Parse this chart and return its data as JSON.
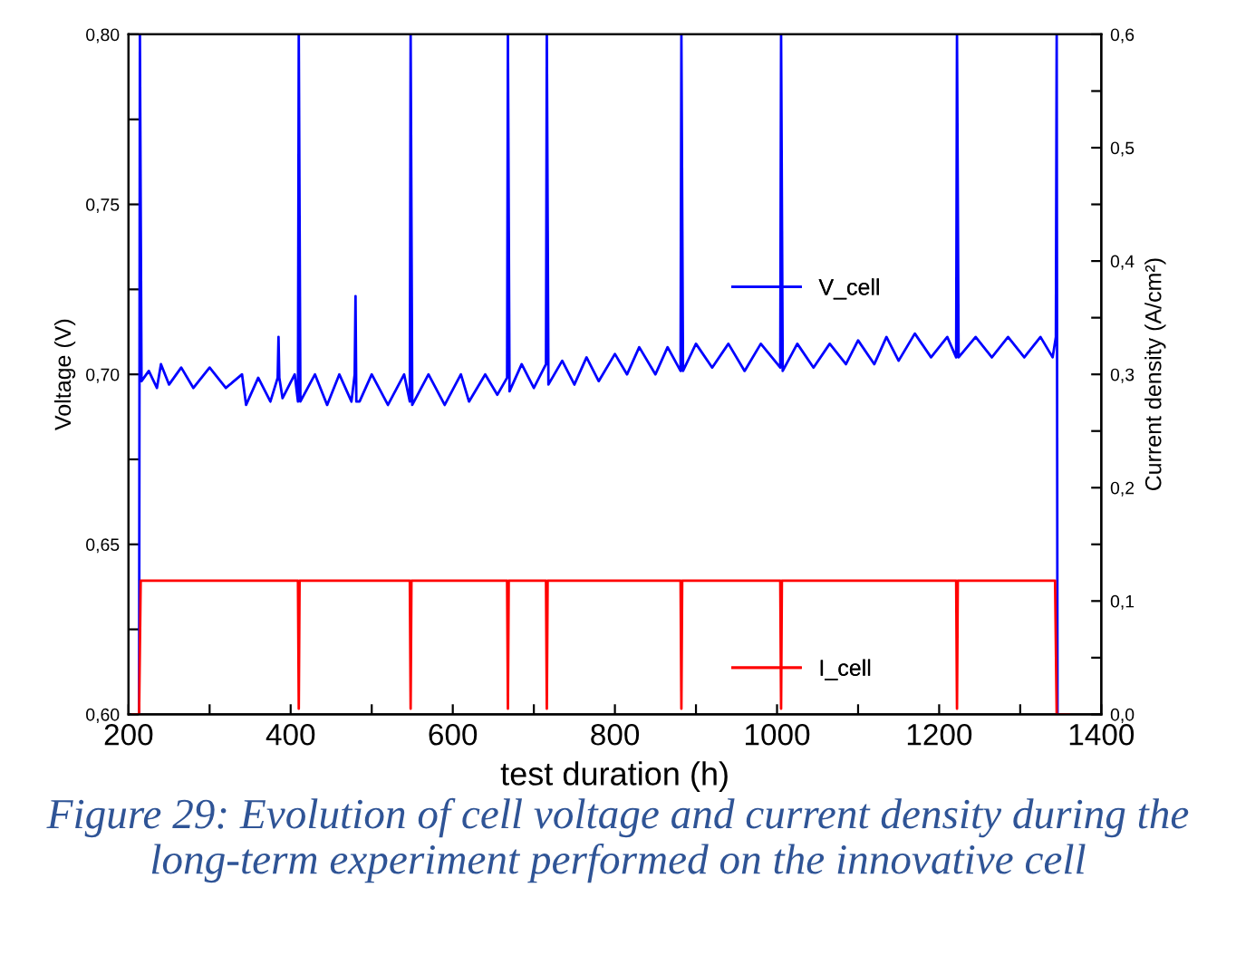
{
  "chart_data": {
    "type": "line",
    "xlabel": "test duration (h)",
    "ylabel": "Voltage (V)",
    "y2label": "Current density (A/cm²)",
    "xlim": [
      200,
      1400
    ],
    "xticks": [
      200,
      {
        "value": 300,
        "label": null
      },
      400,
      {
        "value": 500,
        "label": null
      },
      600,
      {
        "value": 700,
        "label": null
      },
      800,
      {
        "value": 900,
        "label": null
      },
      1000,
      {
        "value": 1100,
        "label": null
      },
      1200,
      {
        "value": 1300,
        "label": null
      },
      1400
    ],
    "ylim": [
      0.6,
      0.8
    ],
    "yticks": [
      {
        "value": 0.6,
        "label": "0,60"
      },
      {
        "value": 0.625,
        "label": null
      },
      {
        "value": 0.65,
        "label": "0,65"
      },
      {
        "value": 0.675,
        "label": null
      },
      {
        "value": 0.7,
        "label": "0,70"
      },
      {
        "value": 0.725,
        "label": null
      },
      {
        "value": 0.75,
        "label": "0,75"
      },
      {
        "value": 0.775,
        "label": null
      },
      {
        "value": 0.8,
        "label": "0,80"
      }
    ],
    "y2lim": [
      0,
      0.6
    ],
    "y2ticks": [
      {
        "value": 0,
        "label": "0,0"
      },
      {
        "value": 0.05,
        "label": null
      },
      {
        "value": 0.1,
        "label": "0,1"
      },
      {
        "value": 0.15,
        "label": null
      },
      {
        "value": 0.2,
        "label": "0,2"
      },
      {
        "value": 0.25,
        "label": null
      },
      {
        "value": 0.3,
        "label": "0,3"
      },
      {
        "value": 0.35,
        "label": null
      },
      {
        "value": 0.4,
        "label": "0,4"
      },
      {
        "value": 0.45,
        "label": null
      },
      {
        "value": 0.5,
        "label": "0,5"
      },
      {
        "value": 0.55,
        "label": null
      },
      {
        "value": 0.6,
        "label": "0,6"
      }
    ],
    "legend": "right",
    "grid": false,
    "marker": "none",
    "line_style": "solid",
    "series": [
      {
        "name": "V_cell",
        "color": "#0000ff",
        "axis": "y",
        "x": [
          213,
          214,
          216,
          225,
          235,
          240,
          250,
          265,
          280,
          300,
          320,
          340,
          345,
          360,
          375,
          384,
          385,
          386,
          390,
          405,
          409,
          410,
          412,
          430,
          445,
          460,
          475,
          479,
          480,
          481,
          485,
          500,
          520,
          540,
          547,
          548,
          550,
          570,
          590,
          610,
          620,
          640,
          655,
          667,
          668,
          670,
          685,
          700,
          715,
          716,
          718,
          735,
          750,
          765,
          780,
          800,
          815,
          830,
          850,
          865,
          881,
          882,
          884,
          900,
          920,
          940,
          960,
          980,
          1004,
          1005,
          1007,
          1025,
          1045,
          1065,
          1085,
          1100,
          1120,
          1135,
          1150,
          1170,
          1190,
          1210,
          1221,
          1222,
          1224,
          1245,
          1265,
          1285,
          1305,
          1325,
          1340,
          1344,
          1345,
          1346
        ],
        "values": [
          0.6,
          0.8,
          0.698,
          0.701,
          0.696,
          0.703,
          0.697,
          0.702,
          0.696,
          0.702,
          0.696,
          0.7,
          0.691,
          0.699,
          0.692,
          0.699,
          0.711,
          0.699,
          0.693,
          0.7,
          0.692,
          0.8,
          0.692,
          0.7,
          0.691,
          0.7,
          0.692,
          0.7,
          0.723,
          0.692,
          0.692,
          0.7,
          0.691,
          0.7,
          0.692,
          0.8,
          0.691,
          0.7,
          0.691,
          0.7,
          0.692,
          0.7,
          0.694,
          0.699,
          0.8,
          0.695,
          0.703,
          0.696,
          0.703,
          0.8,
          0.697,
          0.704,
          0.697,
          0.705,
          0.698,
          0.706,
          0.7,
          0.708,
          0.7,
          0.708,
          0.701,
          0.8,
          0.701,
          0.709,
          0.702,
          0.709,
          0.701,
          0.709,
          0.702,
          0.8,
          0.701,
          0.709,
          0.702,
          0.709,
          0.703,
          0.71,
          0.703,
          0.711,
          0.704,
          0.712,
          0.705,
          0.711,
          0.705,
          0.8,
          0.705,
          0.711,
          0.705,
          0.711,
          0.705,
          0.711,
          0.705,
          0.711,
          0.8,
          0.6
        ]
      },
      {
        "name": "I_cell",
        "color": "#ff0000",
        "axis": "y2",
        "x": [
          205,
          213,
          215,
          409,
          410,
          411,
          547,
          548,
          549,
          667,
          668,
          669,
          715,
          716,
          717,
          881,
          882,
          883,
          1004,
          1005,
          1006,
          1221,
          1222,
          1223,
          1343,
          1345,
          1360
        ],
        "values": [
          0,
          0,
          0.118,
          0.118,
          0.005,
          0.118,
          0.118,
          0.005,
          0.118,
          0.118,
          0.005,
          0.118,
          0.118,
          0.005,
          0.118,
          0.118,
          0.005,
          0.118,
          0.118,
          0.005,
          0.118,
          0.118,
          0.005,
          0.118,
          0.118,
          0,
          0
        ]
      }
    ],
    "annotations": [
      "Figure 29: Evolution of cell voltage and current density during the long-term experiment performed on the innovative cell"
    ]
  }
}
